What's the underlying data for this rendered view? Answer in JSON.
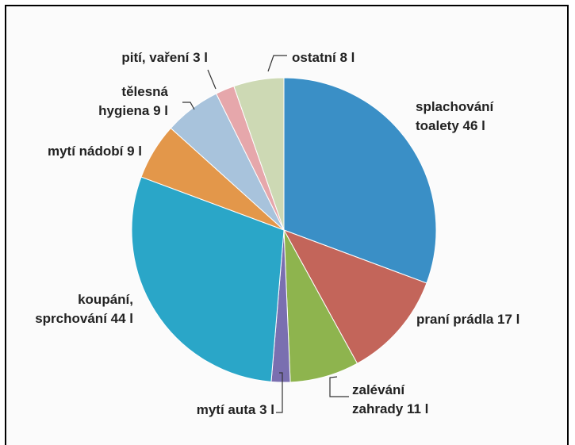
{
  "chart_data": {
    "type": "pie",
    "title": "",
    "slices": [
      {
        "label_lines": [
          "splachování",
          "toalety 46 l"
        ],
        "value": 46,
        "color": "#3a8fc6"
      },
      {
        "label_lines": [
          "praní prádla 17 l"
        ],
        "value": 17,
        "color": "#c3655a"
      },
      {
        "label_lines": [
          "zalévání",
          "zahrady 11 l"
        ],
        "value": 11,
        "color": "#8eb44e"
      },
      {
        "label_lines": [
          "mytí auta 3 l"
        ],
        "value": 3,
        "color": "#7a6fb0"
      },
      {
        "label_lines": [
          "koupání,",
          "sprchování 44 l"
        ],
        "value": 44,
        "color": "#2aa6c8"
      },
      {
        "label_lines": [
          "mytí nádobí 9 l"
        ],
        "value": 9,
        "color": "#e3974a"
      },
      {
        "label_lines": [
          "tělesná",
          "hygiena 9 l"
        ],
        "value": 9,
        "color": "#a8c3dc"
      },
      {
        "label_lines": [
          "pití, vaření 3 l"
        ],
        "value": 3,
        "color": "#e6a7ab"
      },
      {
        "label_lines": [
          "ostatní 8 l"
        ],
        "value": 8,
        "color": "#cdd9b4"
      }
    ],
    "start_angle": "12 o'clock",
    "direction": "clockwise",
    "legend": "none (labels beside slices)"
  }
}
